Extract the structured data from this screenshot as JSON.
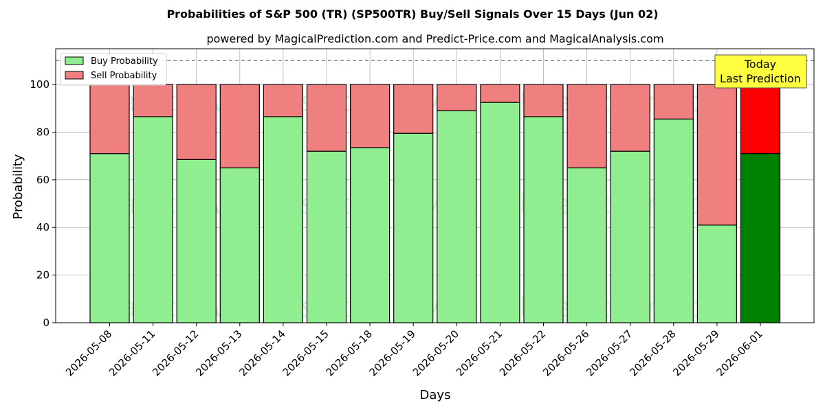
{
  "chart_data": {
    "type": "bar",
    "stacked": true,
    "title": "Probabilities of S&P 500 (TR) (SP500TR) Buy/Sell Signals Over 15 Days (Jun 02)",
    "subtitle": "powered by MagicalPrediction.com and Predict-Price.com and MagicalAnalysis.com",
    "xlabel": "Days",
    "ylabel": "Probability",
    "ylim": [
      0,
      115
    ],
    "yticks": [
      0,
      20,
      40,
      60,
      80,
      100
    ],
    "grid": true,
    "legend_position": "top-left",
    "reference_line": 110,
    "categories": [
      "2026-05-08",
      "2026-05-11",
      "2026-05-12",
      "2026-05-13",
      "2026-05-14",
      "2026-05-15",
      "2026-05-18",
      "2026-05-19",
      "2026-05-20",
      "2026-05-21",
      "2026-05-22",
      "2026-05-26",
      "2026-05-27",
      "2026-05-28",
      "2026-05-29",
      "2026-06-01"
    ],
    "series": [
      {
        "name": "Buy Probability",
        "color": "#90ee90",
        "highlight_color": "#008000",
        "values": [
          71,
          86.5,
          68.5,
          65,
          86.5,
          72,
          73.5,
          79.5,
          89,
          92.5,
          86.5,
          65,
          72,
          85.5,
          41,
          71
        ]
      },
      {
        "name": "Sell Probability",
        "color": "#f08080",
        "highlight_color": "#ff0000",
        "values": [
          29,
          13.5,
          31.5,
          35,
          13.5,
          28,
          26.5,
          20.5,
          11,
          7.5,
          13.5,
          35,
          28,
          14.5,
          59,
          29
        ]
      }
    ],
    "highlight_index": 15,
    "annotation": {
      "lines": [
        "Today",
        "Last Prediction"
      ],
      "bg": "#ffff40"
    },
    "watermarks": [
      "MagicalAnalysis.com",
      "MagicalPrediction.com"
    ]
  }
}
